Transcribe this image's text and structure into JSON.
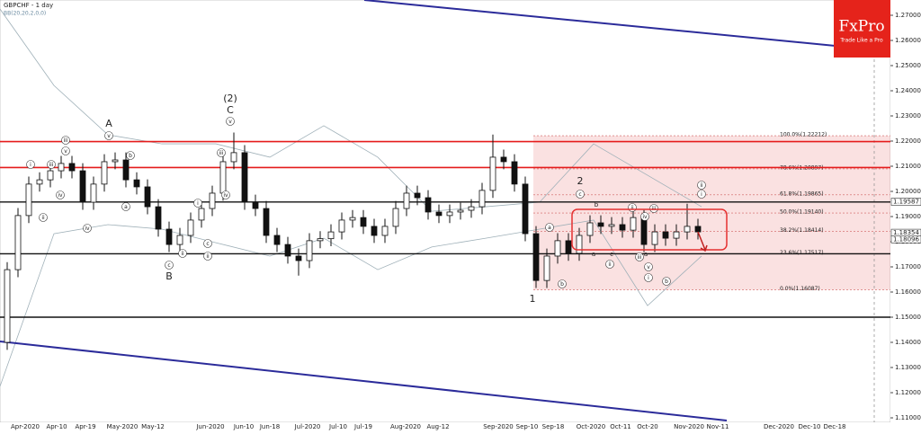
{
  "chart_data": {
    "type": "candlestick",
    "title": "GBPCHF - 1 day",
    "subtitle": "BB(20,20,2,0,0)",
    "brand": "FxPro",
    "tagline": "Trade Like a Pro",
    "ylim": [
      1.10822,
      1.27607
    ],
    "yticks": [
      {
        "value": 1.27,
        "label": "1.27000"
      },
      {
        "value": 1.26,
        "label": "1.26000"
      },
      {
        "value": 1.25,
        "label": "1.25000"
      },
      {
        "value": 1.24,
        "label": "1.24000"
      },
      {
        "value": 1.23,
        "label": "1.23000"
      },
      {
        "value": 1.22,
        "label": "1.22000"
      },
      {
        "value": 1.21,
        "label": "1.21000"
      },
      {
        "value": 1.2,
        "label": "1.20000"
      },
      {
        "value": 1.19,
        "label": "1.19000"
      },
      {
        "value": 1.18,
        "label": "1.18000"
      },
      {
        "value": 1.17,
        "label": "1.17000"
      },
      {
        "value": 1.16,
        "label": "1.16000"
      },
      {
        "value": 1.15,
        "label": "1.15000"
      },
      {
        "value": 1.14,
        "label": "1.14000"
      },
      {
        "value": 1.13,
        "label": "1.13000"
      },
      {
        "value": 1.12,
        "label": "1.12000"
      },
      {
        "value": 1.11,
        "label": "1.11000"
      }
    ],
    "x_labels": [
      "Apr-2020",
      "Apr-10",
      "Apr-19",
      "May-2020",
      "May-12",
      "Jun-2020",
      "Jun-10",
      "Jun-18",
      "Jul-2020",
      "Jul-10",
      "Jul-19",
      "Aug-2020",
      "Aug-12",
      "Sep-2020",
      "Sep-10",
      "Sep-18",
      "Oct-2020",
      "Oct-11",
      "Oct-20",
      "Nov-2020",
      "Nov-11",
      "Dec-2020",
      "Dec-10",
      "Dec-18"
    ],
    "open": [
      1.14,
      1.1689,
      1.1904,
      1.2029,
      1.2046,
      1.2082,
      1.2111,
      1.2082,
      1.1957,
      1.2029,
      1.2118,
      1.2125,
      1.2046,
      1.2018,
      1.1939,
      1.185,
      1.1789,
      1.1825,
      1.1886,
      1.1932,
      1.1993,
      1.2118,
      1.2154,
      1.1957,
      1.1932,
      1.1825,
      1.1789,
      1.1743,
      1.1725,
      1.1804,
      1.1812,
      1.1839,
      1.1886,
      1.1896,
      1.1861,
      1.1825,
      1.1861,
      1.1932,
      1.1993,
      1.1975,
      1.1918,
      1.1904,
      1.1918,
      1.1925,
      1.1939,
      1.2004,
      1.2136,
      1.2118,
      1.2029,
      1.1832,
      1.1646,
      1.1743,
      1.1804,
      1.1754,
      1.1825,
      1.1875,
      1.1861,
      1.1868,
      1.1846,
      1.1896,
      1.1789,
      1.1839,
      1.1814,
      1.1839,
      1.1861
    ],
    "high": [
      1.1719,
      1.1934,
      1.2059,
      1.2076,
      1.2112,
      1.2141,
      1.2141,
      1.2112,
      1.2059,
      1.2148,
      1.2155,
      1.2155,
      1.2076,
      1.2048,
      1.1969,
      1.188,
      1.1855,
      1.1916,
      1.1962,
      1.2023,
      1.2148,
      1.2234,
      1.2184,
      1.1987,
      1.1962,
      1.1855,
      1.1819,
      1.1773,
      1.1834,
      1.1842,
      1.1869,
      1.1916,
      1.1926,
      1.1926,
      1.1891,
      1.1891,
      1.1962,
      1.2023,
      1.2023,
      1.2005,
      1.1948,
      1.1948,
      1.1955,
      1.1969,
      1.2034,
      1.2226,
      1.2166,
      1.2148,
      1.2059,
      1.1862,
      1.1773,
      1.1834,
      1.1834,
      1.1855,
      1.1905,
      1.1905,
      1.1898,
      1.1898,
      1.1926,
      1.1926,
      1.1869,
      1.1869,
      1.1869,
      1.1951,
      1.1891
    ],
    "low": [
      1.137,
      1.1659,
      1.1874,
      1.1999,
      1.2016,
      1.2052,
      1.2052,
      1.1927,
      1.1927,
      1.1999,
      1.2088,
      1.2016,
      1.1988,
      1.1909,
      1.182,
      1.1759,
      1.1759,
      1.1795,
      1.1856,
      1.1902,
      1.1963,
      1.2088,
      1.1927,
      1.1902,
      1.1795,
      1.1759,
      1.1713,
      1.1665,
      1.1695,
      1.1774,
      1.1782,
      1.1809,
      1.1856,
      1.1831,
      1.1795,
      1.1795,
      1.1831,
      1.1902,
      1.1945,
      1.1888,
      1.1874,
      1.1874,
      1.1888,
      1.1895,
      1.1909,
      1.1974,
      1.2088,
      1.1999,
      1.1802,
      1.1616,
      1.1616,
      1.1713,
      1.1724,
      1.1724,
      1.1795,
      1.1831,
      1.1831,
      1.1816,
      1.1816,
      1.1759,
      1.1759,
      1.1784,
      1.1784,
      1.1809,
      1.1809
    ],
    "close": [
      1.1689,
      1.1904,
      1.2029,
      1.2046,
      1.2082,
      1.2111,
      1.2082,
      1.1957,
      1.2029,
      1.2118,
      1.2125,
      1.2046,
      1.2018,
      1.1939,
      1.185,
      1.1789,
      1.1825,
      1.1886,
      1.1932,
      1.1993,
      1.2118,
      1.2154,
      1.1957,
      1.1932,
      1.1825,
      1.1789,
      1.1743,
      1.1725,
      1.1804,
      1.1812,
      1.1839,
      1.1886,
      1.1896,
      1.1861,
      1.1825,
      1.1861,
      1.1932,
      1.1993,
      1.1975,
      1.1918,
      1.1904,
      1.1918,
      1.1925,
      1.1939,
      1.2004,
      1.2136,
      1.2118,
      1.2029,
      1.1832,
      1.1646,
      1.1743,
      1.1804,
      1.1754,
      1.1825,
      1.1875,
      1.1861,
      1.1868,
      1.1846,
      1.1896,
      1.1789,
      1.1839,
      1.1814,
      1.1839,
      1.1861,
      1.1839
    ],
    "band_upper": [
      1.2725,
      1.2421,
      1.2225,
      1.2189,
      1.2189,
      1.2136,
      1.2261,
      1.2136,
      1.1921,
      1.1939,
      1.1957,
      1.2189,
      1.2064,
      1.1939
    ],
    "band_lower": [
      1.1225,
      1.1832,
      1.1868,
      1.185,
      1.1796,
      1.1743,
      1.1814,
      1.1689,
      1.1779,
      1.1814,
      1.185,
      1.1886,
      1.1546,
      1.1743
    ],
    "red_levels": [
      1.2198,
      1.2095
    ],
    "black_levels": [
      1.1958,
      1.1752,
      1.15
    ],
    "fib_range": [
      1.22212,
      1.16087
    ],
    "fib_levels": [
      {
        "value": 1.22212,
        "label": "100.0%(1.22212)"
      },
      {
        "value": 1.20897,
        "label": "78.6%(1.20897)"
      },
      {
        "value": 1.19865,
        "label": "61.8%(1.19865)"
      },
      {
        "value": 1.1914,
        "label": "50.0%(1.19140)"
      },
      {
        "value": 1.18414,
        "label": "38.2%(1.18414)"
      },
      {
        "value": 1.17517,
        "label": "23.6%(1.17517)"
      },
      {
        "value": 1.16087,
        "label": "0.0%(1.16087)"
      }
    ],
    "price_tags": [
      {
        "value": 1.19587,
        "label": "1.19587"
      },
      {
        "value": 1.18354,
        "label": "1.18354"
      },
      {
        "value": 1.18096,
        "label": "1.18096"
      }
    ],
    "wave_labels": [
      "A",
      "B",
      "(2)",
      "C",
      "2",
      "1",
      "b",
      "a",
      "c",
      "a"
    ],
    "circled_labels": [
      "v",
      "iii",
      "i",
      "iii",
      "v",
      "iv",
      "ii",
      "iv",
      "b",
      "a",
      "c",
      "i",
      "ii",
      "c",
      "ii",
      "iii",
      "iv",
      "v",
      "c",
      "a",
      "b",
      "ii",
      "iv",
      "iii",
      "iii",
      "v",
      "i",
      "ii",
      "b",
      "ii",
      "i"
    ]
  }
}
